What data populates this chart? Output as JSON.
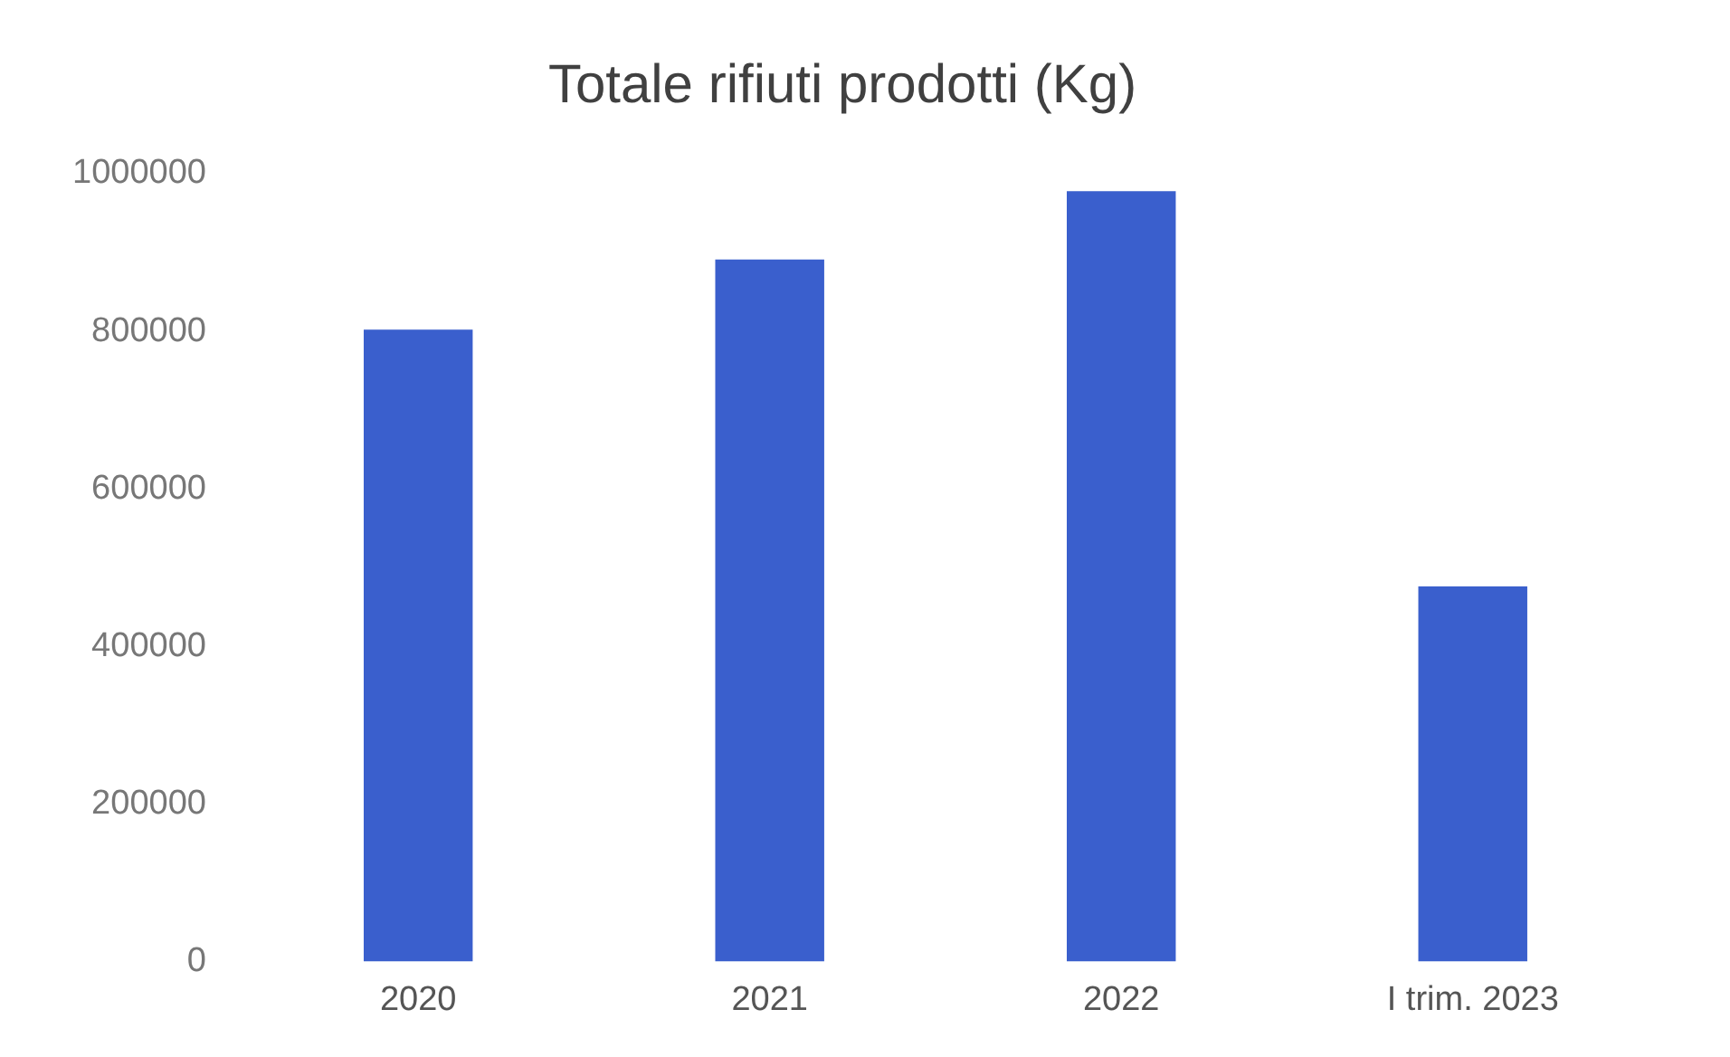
{
  "chart_data": {
    "type": "bar",
    "title": "Totale rifiuti prodotti (Kg)",
    "categories": [
      "2020",
      "2021",
      "2022",
      "I trim. 2023"
    ],
    "values": [
      802000,
      891000,
      978000,
      476000
    ],
    "color": "#3a5fcd",
    "ylim": [
      0,
      1000000
    ],
    "yticks": [
      0,
      200000,
      400000,
      600000,
      800000,
      1000000
    ],
    "grid": false,
    "legend": false
  }
}
